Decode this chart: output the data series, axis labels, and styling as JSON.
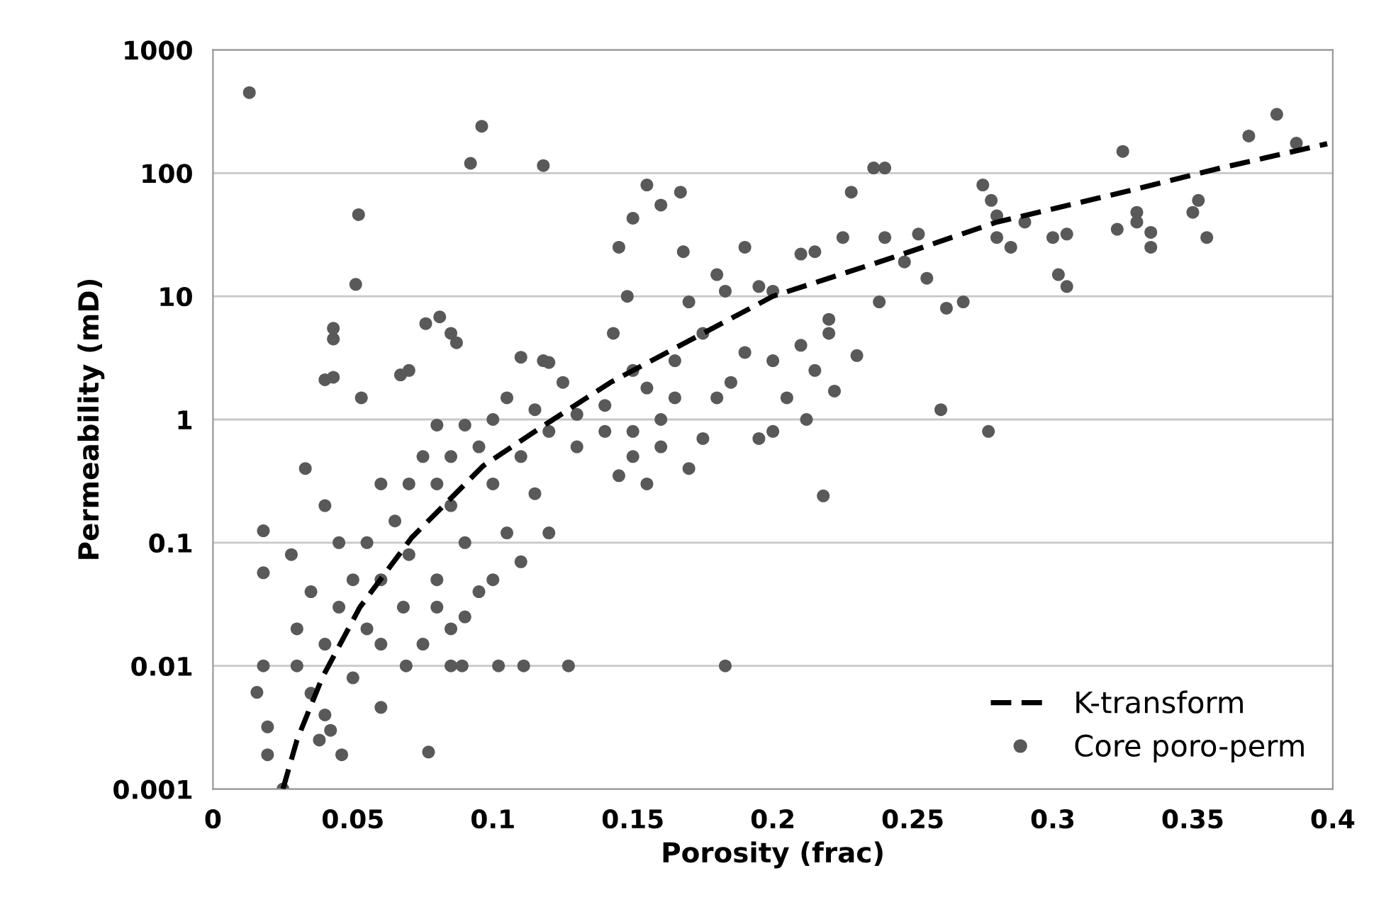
{
  "chart_data": {
    "type": "scatter",
    "xlabel": "Porosity (frac)",
    "ylabel": "Permeability (mD)",
    "log": "y",
    "xlim": [
      0,
      0.4
    ],
    "ylim": [
      0.001,
      1000
    ],
    "xticks": [
      0,
      0.05,
      0.1,
      0.15,
      0.2,
      0.25,
      0.3,
      0.35,
      0.4
    ],
    "yticks": [
      {
        "value": 0.001,
        "label": "0.001"
      },
      {
        "value": 0.01,
        "label": "0.01"
      },
      {
        "value": 0.1,
        "label": "0.1"
      },
      1,
      10,
      100,
      1000
    ],
    "grid": "y",
    "legend": "bottom right",
    "series": [
      {
        "name": "K-transform",
        "type": "line",
        "color": "#000000",
        "line_style": "dashed",
        "marker": "none",
        "x": [
          0.025,
          0.03,
          0.039,
          0.0525,
          0.071,
          0.0965,
          0.12,
          0.142,
          0.2,
          0.241,
          0.28,
          0.324,
          0.36,
          0.398
        ],
        "values": [
          0.001,
          0.0025,
          0.008,
          0.03,
          0.11,
          0.42,
          0.95,
          2.0,
          10,
          20,
          40,
          69,
          110,
          173
        ]
      },
      {
        "name": "Core poro-perm",
        "color": "#595959",
        "marker": "circle",
        "x": [
          0.013,
          0.092,
          0.096,
          0.118,
          0.052,
          0.051,
          0.043,
          0.043,
          0.04,
          0.043,
          0.053,
          0.067,
          0.07,
          0.076,
          0.081,
          0.085,
          0.087,
          0.11,
          0.118,
          0.12,
          0.145,
          0.148,
          0.143,
          0.15,
          0.155,
          0.16,
          0.167,
          0.168,
          0.17,
          0.175,
          0.18,
          0.183,
          0.19,
          0.195,
          0.2,
          0.21,
          0.215,
          0.22,
          0.225,
          0.228,
          0.24,
          0.236,
          0.247,
          0.252,
          0.255,
          0.24,
          0.238,
          0.22,
          0.26,
          0.262,
          0.268,
          0.275,
          0.278,
          0.277,
          0.28,
          0.28,
          0.285,
          0.29,
          0.3,
          0.302,
          0.305,
          0.305,
          0.323,
          0.325,
          0.33,
          0.33,
          0.335,
          0.335,
          0.35,
          0.352,
          0.355,
          0.37,
          0.38,
          0.387,
          0.218,
          0.183,
          0.127,
          0.111,
          0.2,
          0.205,
          0.2,
          0.195,
          0.185,
          0.19,
          0.21,
          0.215,
          0.222,
          0.23,
          0.212,
          0.18,
          0.175,
          0.165,
          0.16,
          0.155,
          0.15,
          0.14,
          0.15,
          0.155,
          0.145,
          0.13,
          0.13,
          0.125,
          0.12,
          0.115,
          0.11,
          0.105,
          0.1,
          0.1,
          0.105,
          0.11,
          0.12,
          0.115,
          0.095,
          0.09,
          0.085,
          0.08,
          0.08,
          0.085,
          0.09,
          0.095,
          0.1,
          0.09,
          0.085,
          0.08,
          0.075,
          0.07,
          0.07,
          0.065,
          0.06,
          0.06,
          0.055,
          0.05,
          0.045,
          0.045,
          0.04,
          0.04,
          0.035,
          0.033,
          0.03,
          0.03,
          0.028,
          0.035,
          0.04,
          0.042,
          0.046,
          0.038,
          0.025,
          0.018,
          0.018,
          0.018,
          0.0157,
          0.0195,
          0.0195,
          0.06,
          0.069,
          0.077,
          0.085,
          0.06,
          0.055,
          0.075,
          0.08,
          0.068,
          0.05,
          0.15,
          0.165,
          0.17,
          0.14,
          0.16,
          0.102,
          0.089
        ],
        "values": [
          450,
          120,
          240,
          115,
          46,
          12.5,
          5.5,
          4.5,
          2.1,
          2.2,
          1.5,
          2.3,
          2.5,
          6,
          6.8,
          5,
          4.2,
          3.2,
          3,
          2.9,
          25,
          10,
          5,
          43,
          80,
          55,
          70,
          23,
          9,
          5,
          15,
          11,
          25,
          12,
          11,
          22,
          23,
          6.5,
          30,
          70,
          110,
          110,
          19,
          32,
          14,
          30,
          9,
          5,
          1.2,
          8,
          9,
          80,
          60,
          0.8,
          30,
          45,
          25,
          40,
          30,
          15,
          12,
          32,
          35,
          150,
          48,
          40,
          33,
          25,
          48,
          60,
          30,
          200,
          300,
          175,
          0.24,
          0.01,
          0.01,
          0.01,
          3,
          1.5,
          0.8,
          0.7,
          2,
          3.5,
          4,
          2.5,
          1.7,
          3.3,
          1,
          1.5,
          0.7,
          3,
          1,
          1.8,
          2.5,
          1.3,
          0.5,
          0.3,
          0.35,
          0.6,
          1.1,
          2,
          0.8,
          1.2,
          0.5,
          1.5,
          1,
          0.3,
          0.12,
          0.07,
          0.12,
          0.25,
          0.6,
          0.9,
          0.5,
          0.9,
          0.3,
          0.2,
          0.1,
          0.04,
          0.05,
          0.025,
          0.02,
          0.05,
          0.5,
          0.3,
          0.08,
          0.15,
          0.3,
          0.05,
          0.1,
          0.05,
          0.03,
          0.1,
          0.2,
          0.015,
          0.04,
          0.4,
          0.02,
          0.01,
          0.08,
          0.006,
          0.004,
          0.003,
          0.0019,
          0.0025,
          0.001,
          0.01,
          0.125,
          0.057,
          0.0061,
          0.0032,
          0.0019,
          0.0046,
          0.01,
          0.002,
          0.01,
          0.015,
          0.02,
          0.015,
          0.03,
          0.03,
          0.008,
          0.8,
          1.5,
          0.4,
          0.8,
          0.6,
          0.01,
          0.01
        ]
      }
    ]
  }
}
